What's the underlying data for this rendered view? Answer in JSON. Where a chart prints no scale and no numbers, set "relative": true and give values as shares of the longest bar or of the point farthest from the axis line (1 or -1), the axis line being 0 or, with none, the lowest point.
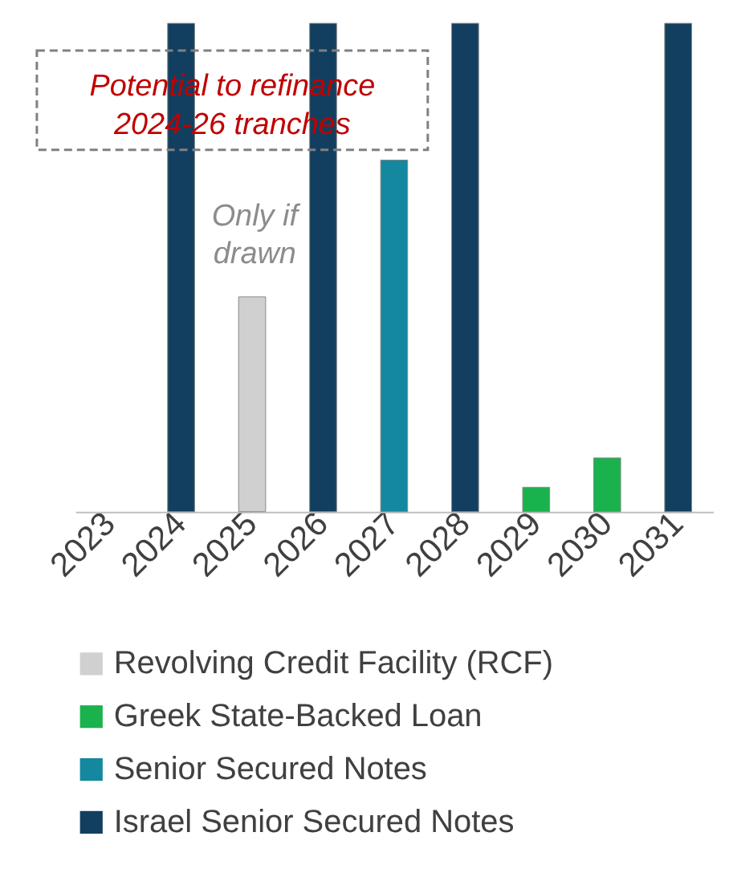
{
  "chart_data": {
    "type": "bar",
    "relative": true,
    "categories": [
      "2023",
      "2024",
      "2025",
      "2026",
      "2027",
      "2028",
      "2029",
      "2030",
      "2031"
    ],
    "series": [
      {
        "name": "Revolving Credit Facility (RCF)",
        "color": "#d0d0d0",
        "values": [
          null,
          null,
          0.44,
          null,
          null,
          null,
          null,
          null,
          null
        ]
      },
      {
        "name": "Greek State-Backed Loan",
        "color": "#1ab24d",
        "values": [
          null,
          null,
          null,
          null,
          null,
          null,
          0.05,
          0.11,
          null
        ]
      },
      {
        "name": "Senior Secured Notes",
        "color": "#13889e",
        "values": [
          null,
          null,
          null,
          null,
          0.72,
          null,
          null,
          null,
          null
        ]
      },
      {
        "name": "Israel Senior Secured Notes",
        "color": "#123f5f",
        "values": [
          null,
          1,
          null,
          1,
          null,
          1,
          null,
          null,
          1
        ]
      }
    ],
    "annotations": [
      "Potential to refinance\n2024-26 tranches",
      "Only if\ndrawn"
    ],
    "legend": "bottom",
    "grid": false
  }
}
